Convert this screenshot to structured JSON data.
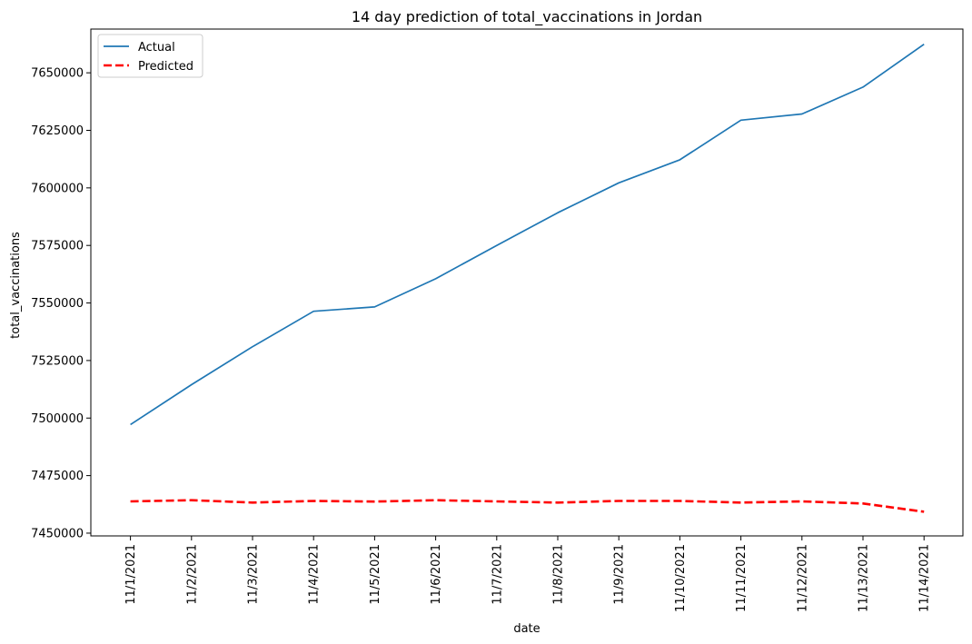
{
  "chart_data": {
    "type": "line",
    "title": "14 day prediction of total_vaccinations in Jordan",
    "xlabel": "date",
    "ylabel": "total_vaccinations",
    "categories": [
      "11/1/2021",
      "11/2/2021",
      "11/3/2021",
      "11/4/2021",
      "11/5/2021",
      "11/6/2021",
      "11/7/2021",
      "11/8/2021",
      "11/9/2021",
      "11/10/2021",
      "11/11/2021",
      "11/12/2021",
      "11/13/2021",
      "11/14/2021"
    ],
    "ylim": [
      7448800,
      7669000
    ],
    "yticks": [
      "7450000",
      "7475000",
      "7500000",
      "7525000",
      "7550000",
      "7575000",
      "7600000",
      "7625000",
      "7650000"
    ],
    "grid": false,
    "legend": "top-left",
    "series": [
      {
        "name": "Actual",
        "color": "#1f77b4",
        "style": "solid",
        "values": [
          7497200,
          7514500,
          7531000,
          7546400,
          7548300,
          7560500,
          7575000,
          7589200,
          7602200,
          7612200,
          7629400,
          7632100,
          7643800,
          7662400
        ]
      },
      {
        "name": "Predicted",
        "color": "#ff0000",
        "style": "dashed",
        "values": [
          7463800,
          7464300,
          7463300,
          7464000,
          7463700,
          7464300,
          7463800,
          7463300,
          7464000,
          7464000,
          7463300,
          7463800,
          7462900,
          7459300
        ]
      }
    ]
  }
}
